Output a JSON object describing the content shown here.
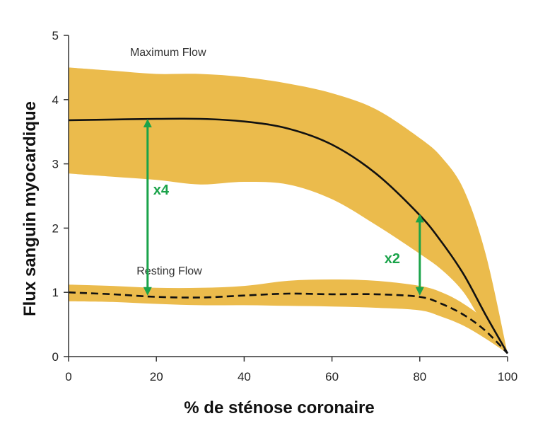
{
  "chart_data": {
    "type": "line",
    "xlabel": "% de sténose coronaire",
    "ylabel": "Flux sanguin myocardique",
    "xlim": [
      0,
      100
    ],
    "ylim": [
      0,
      5
    ],
    "xticks": [
      "0",
      "20",
      "40",
      "60",
      "80",
      "100"
    ],
    "yticks": [
      "0",
      "1",
      "2",
      "3",
      "4",
      "5"
    ],
    "grid": false,
    "colors": {
      "band": "#ebbb4c",
      "curve": "#111111",
      "arrow": "#1aa34a",
      "axis": "#333333"
    },
    "series": [
      {
        "name": "Maximum Flow",
        "style": "solid",
        "x": [
          0,
          10,
          20,
          30,
          40,
          50,
          60,
          70,
          80,
          85,
          90,
          95,
          100
        ],
        "y": [
          3.68,
          3.69,
          3.7,
          3.7,
          3.66,
          3.55,
          3.3,
          2.85,
          2.2,
          1.78,
          1.28,
          0.65,
          0.05
        ],
        "band_upper": [
          4.5,
          4.45,
          4.4,
          4.4,
          4.35,
          4.25,
          4.1,
          3.85,
          3.4,
          3.1,
          2.6,
          1.6,
          0.05
        ],
        "band_lower": [
          2.85,
          2.8,
          2.75,
          2.68,
          2.72,
          2.68,
          2.45,
          2.05,
          1.6,
          1.35,
          1.0,
          0.45,
          0.05
        ]
      },
      {
        "name": "Resting Flow",
        "style": "dashed",
        "x": [
          0,
          10,
          20,
          30,
          40,
          50,
          60,
          70,
          80,
          85,
          90,
          95,
          100
        ],
        "y": [
          1.0,
          0.97,
          0.93,
          0.92,
          0.95,
          0.98,
          0.97,
          0.97,
          0.93,
          0.82,
          0.65,
          0.4,
          0.05
        ],
        "band_upper": [
          1.12,
          1.1,
          1.07,
          1.07,
          1.1,
          1.18,
          1.2,
          1.18,
          1.1,
          1.0,
          0.82,
          0.55,
          0.05
        ],
        "band_lower": [
          0.86,
          0.85,
          0.82,
          0.8,
          0.8,
          0.79,
          0.78,
          0.76,
          0.72,
          0.62,
          0.48,
          0.28,
          0.05
        ]
      }
    ],
    "annotations": [
      {
        "text": "x4",
        "x": 18,
        "y_from": 0.95,
        "y_to": 3.7
      },
      {
        "text": "x2",
        "x": 80,
        "y_from": 0.95,
        "y_to": 2.22
      }
    ]
  }
}
